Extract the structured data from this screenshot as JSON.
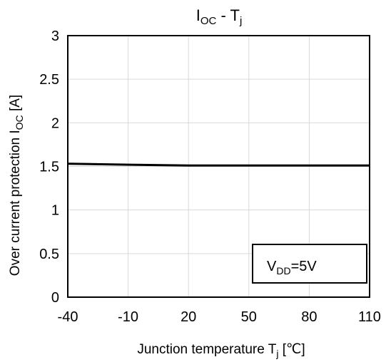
{
  "chart_data": {
    "type": "line",
    "title": {
      "main": "I",
      "sub": "OC",
      "mid": " - T",
      "sub2": "j"
    },
    "xlabel": {
      "main": "Junction temperature  T",
      "sub": "j",
      "unit": "  [℃]"
    },
    "ylabel": {
      "main": "Over current protection  I",
      "sub": "OC",
      "unit": "  [A]"
    },
    "xlim": [
      -40,
      110
    ],
    "ylim": [
      0,
      3
    ],
    "x_ticks": [
      -40,
      -10,
      20,
      50,
      80,
      110
    ],
    "y_ticks": [
      0,
      0.5,
      1,
      1.5,
      2,
      2.5,
      3
    ],
    "grid": true,
    "series": [
      {
        "x": [
          -40,
          -10,
          20,
          50,
          80,
          110
        ],
        "y": [
          1.53,
          1.52,
          1.51,
          1.51,
          1.51,
          1.51
        ]
      }
    ],
    "annotation": {
      "main": "V",
      "sub": "DD",
      "rest": "=5V"
    },
    "line_color": "#000000"
  }
}
